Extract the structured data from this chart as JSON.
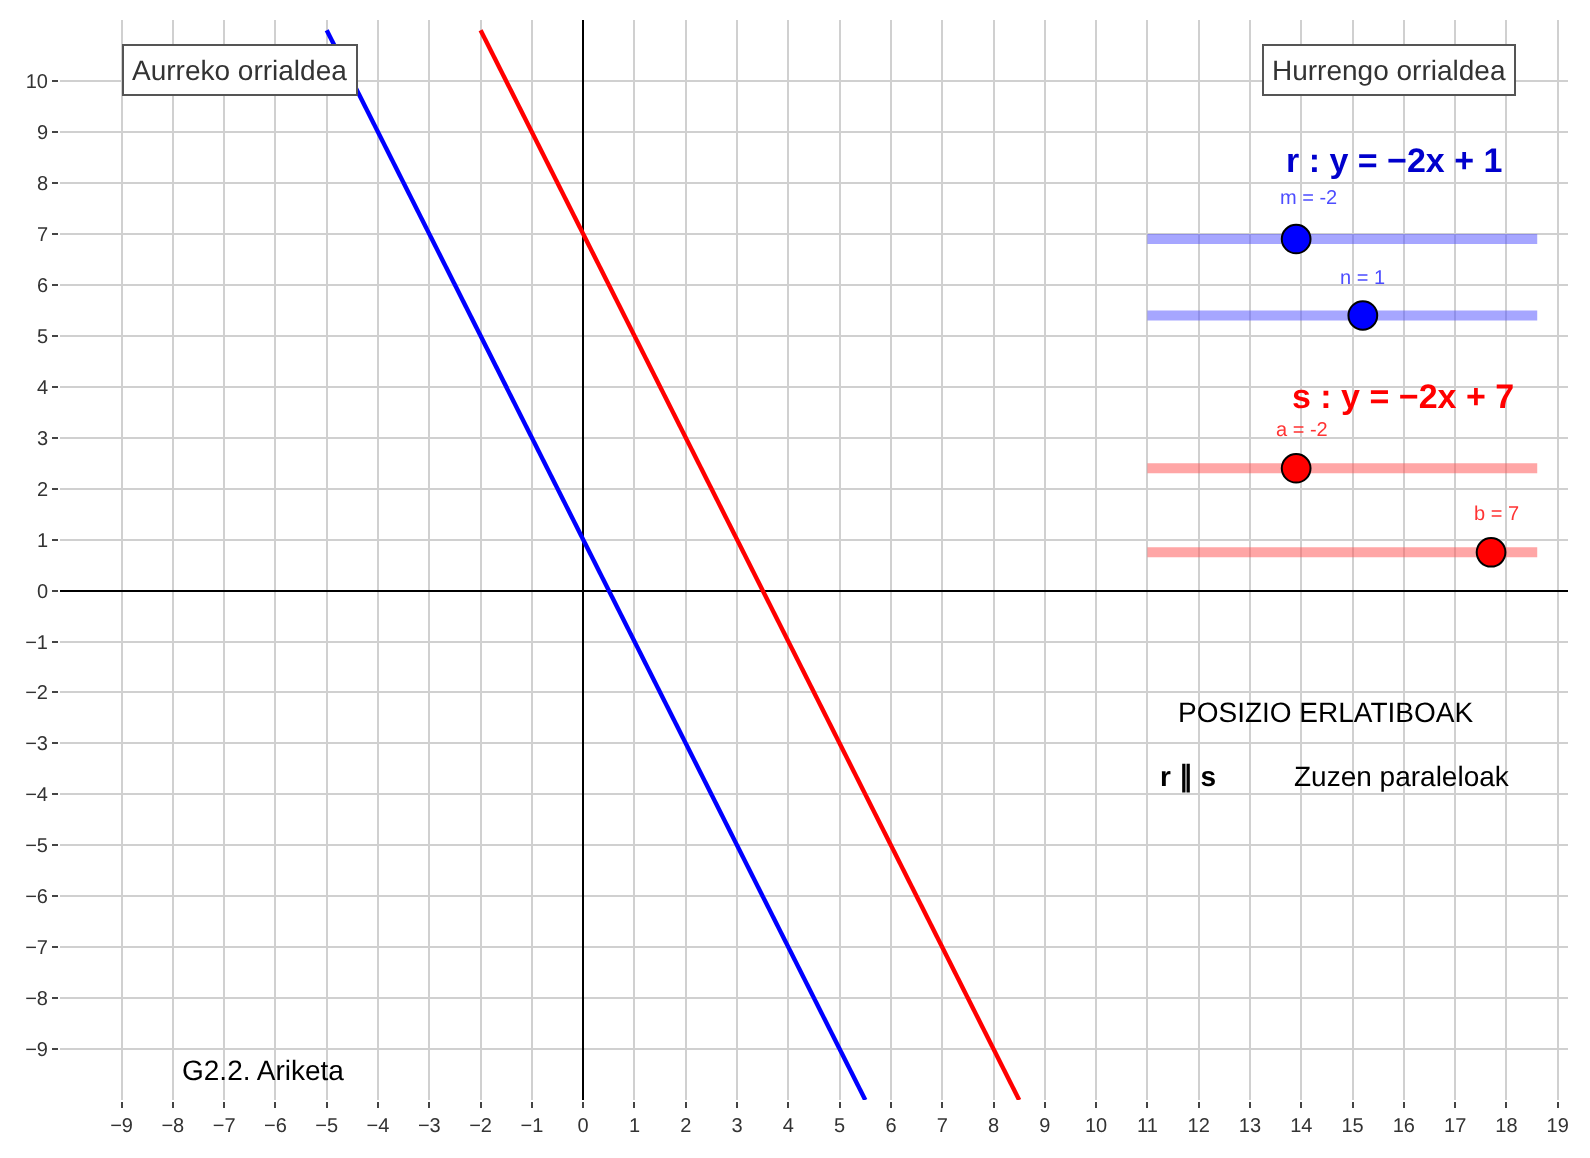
{
  "chart_data": {
    "type": "line",
    "series": [
      {
        "color": "#0000ff",
        "x": [
          -5,
          5.5
        ],
        "values": [
          11,
          -10
        ]
      },
      {
        "color": "#ff0000",
        "x": [
          -2,
          8.5
        ],
        "values": [
          11,
          -10
        ]
      }
    ],
    "xlim": [
      -10.2,
      19.2
    ],
    "ylim": [
      -10,
      11.2
    ],
    "xticks": [
      -9,
      -8,
      -7,
      -6,
      -5,
      -4,
      -3,
      -2,
      -1,
      0,
      1,
      2,
      3,
      4,
      5,
      6,
      7,
      8,
      9,
      10,
      11,
      12,
      13,
      14,
      15,
      16,
      17,
      18,
      19
    ],
    "yticks": [
      -9,
      -8,
      -7,
      -6,
      -5,
      -4,
      -3,
      -2,
      -1,
      0,
      1,
      2,
      3,
      4,
      5,
      6,
      7,
      8,
      9,
      10
    ],
    "grid": true,
    "marker": "none",
    "line_style": "solid",
    "annotations": [
      "Aurreko orrialdea",
      "Hurrengo orrialdea",
      "r : y = −2x + 1",
      "m = -2",
      "n = 1",
      "s : y = −2x + 7",
      "a = -2",
      "b = 7",
      "POSIZIO ERLATIBOAK",
      "r ∥ s",
      "Zuzen paraleloak",
      "G2.2. Ariketa"
    ]
  }
}
